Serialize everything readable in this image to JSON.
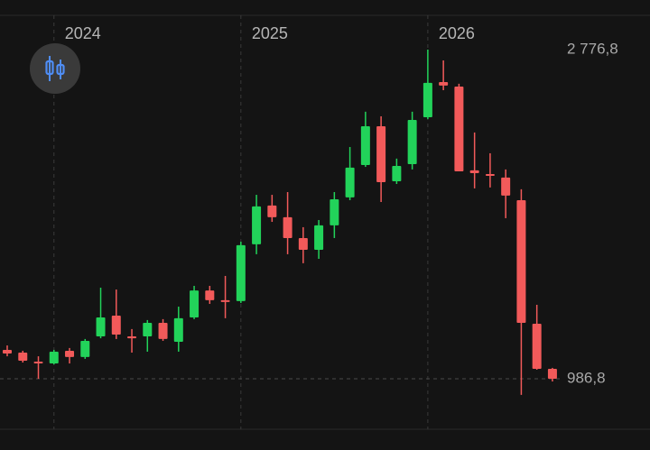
{
  "chart_data": {
    "type": "candlestick",
    "categories": [
      null,
      null,
      null,
      "2024",
      null,
      null,
      null,
      null,
      null,
      null,
      null,
      null,
      null,
      null,
      null,
      "2025",
      null,
      null,
      null,
      null,
      null,
      null,
      null,
      null,
      null,
      null,
      null,
      "2026",
      null,
      null,
      null,
      null,
      null,
      null,
      null,
      null
    ],
    "open": [
      1144,
      1129,
      1080,
      1070,
      1139,
      1105,
      1217,
      1330,
      1217,
      1217,
      1291,
      1188,
      1320,
      1467,
      1414,
      1409,
      1718,
      1929,
      1865,
      1752,
      1688,
      1821,
      1973,
      2149,
      2360,
      2061,
      2154,
      2409,
      2600,
      2576,
      2120,
      2100,
      2081,
      1958,
      1286,
      1041
    ],
    "high": [
      1168,
      1139,
      1109,
      1144,
      1154,
      1203,
      1482,
      1472,
      1257,
      1306,
      1311,
      1379,
      1492,
      1492,
      1546,
      1732,
      1987,
      1987,
      2002,
      1811,
      1850,
      2002,
      2247,
      2439,
      2414,
      2184,
      2439,
      2776.8,
      2718,
      2591,
      2326,
      2213,
      2125,
      2017,
      1389,
      1046
    ],
    "low": [
      1109,
      1075,
      987,
      1065,
      1070,
      1095,
      1207,
      1203,
      1129,
      1134,
      1193,
      1134,
      1311,
      1394,
      1316,
      1399,
      1664,
      1840,
      1664,
      1615,
      1639,
      1752,
      1958,
      2139,
      1948,
      2046,
      2125,
      2399,
      2556,
      2115,
      2022,
      2027,
      1860,
      899,
      1036,
      972
    ],
    "close": [
      1124,
      1085,
      1070,
      1134,
      1105,
      1193,
      1320,
      1227,
      1207,
      1291,
      1203,
      1316,
      1467,
      1414,
      1404,
      1713,
      1924,
      1865,
      1752,
      1688,
      1821,
      1963,
      2135,
      2360,
      2056,
      2144,
      2394,
      2596,
      2581,
      2115,
      2105,
      2090,
      1983,
      1291,
      1041,
      986.8
    ],
    "up_color": "#22d35a",
    "down_color": "#f25a5a",
    "ylim": [
      619,
      3046.5
    ],
    "price_labels": [
      {
        "value": 2776.8,
        "label": "2 776,8"
      },
      {
        "value": 986.8,
        "label": "986,8"
      }
    ]
  }
}
